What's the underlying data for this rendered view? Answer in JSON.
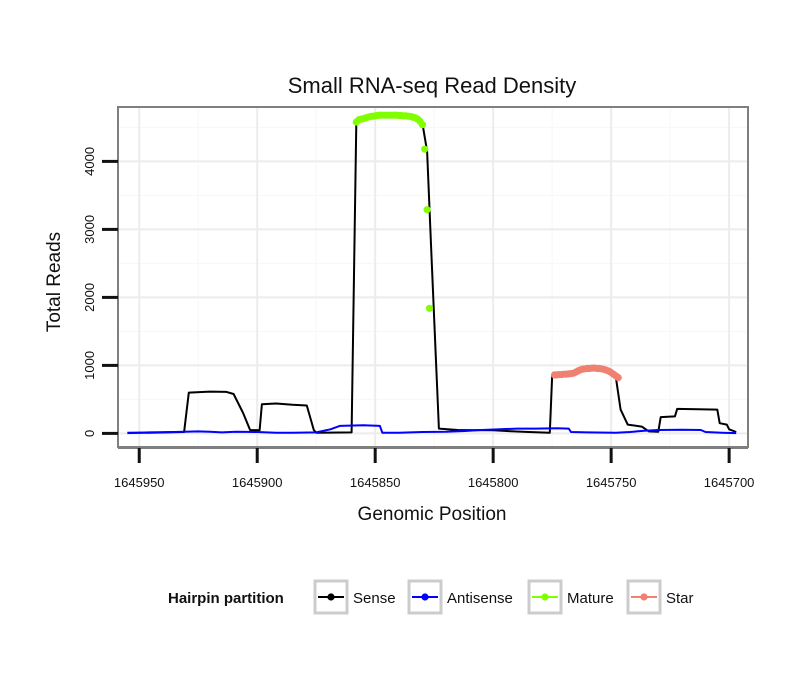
{
  "chart_data": {
    "type": "line",
    "title": "Small RNA-seq Read Density",
    "xlabel": "Genomic Position",
    "ylabel": "Total Reads",
    "xlim": [
      1645959,
      1645692
    ],
    "ylim": [
      -200,
      4800
    ],
    "x_reversed": true,
    "grid": true,
    "x_ticks": [
      1645950,
      1645900,
      1645850,
      1645800,
      1645750,
      1645700
    ],
    "x_tick_labels": [
      "1645950",
      "1645900",
      "1645850",
      "1645800",
      "1645750",
      "1645700"
    ],
    "y_ticks": [
      0,
      1000,
      2000,
      3000,
      4000
    ],
    "y_tick_labels": [
      "0",
      "1000",
      "2000",
      "3000",
      "4000"
    ],
    "legend": {
      "title": "Hairpin partition",
      "placement": "bottom",
      "entries": [
        {
          "name": "Sense",
          "color": "#000000"
        },
        {
          "name": "Antisense",
          "color": "#0000ff"
        },
        {
          "name": "Mature",
          "color": "#7fff00"
        },
        {
          "name": "Star",
          "color": "#f08070"
        }
      ]
    },
    "series": [
      {
        "name": "Sense",
        "color": "#000000",
        "style": "line",
        "points": [
          [
            1645955,
            10
          ],
          [
            1645946,
            10
          ],
          [
            1645939,
            15
          ],
          [
            1645931,
            20
          ],
          [
            1645929,
            600
          ],
          [
            1645920,
            615
          ],
          [
            1645913,
            610
          ],
          [
            1645910,
            580
          ],
          [
            1645906,
            300
          ],
          [
            1645903,
            50
          ],
          [
            1645899,
            45
          ],
          [
            1645898,
            430
          ],
          [
            1645892,
            440
          ],
          [
            1645885,
            420
          ],
          [
            1645879,
            410
          ],
          [
            1645876,
            50
          ],
          [
            1645875,
            10
          ],
          [
            1645860,
            15
          ],
          [
            1645858,
            4560
          ],
          [
            1645855,
            4640
          ],
          [
            1645840,
            4680
          ],
          [
            1645832,
            4660
          ],
          [
            1645830,
            4560
          ],
          [
            1645828,
            4150
          ],
          [
            1645826,
            2500
          ],
          [
            1645823,
            70
          ],
          [
            1645815,
            50
          ],
          [
            1645800,
            45
          ],
          [
            1645791,
            30
          ],
          [
            1645785,
            20
          ],
          [
            1645776,
            10
          ],
          [
            1645775,
            860
          ],
          [
            1645770,
            870
          ],
          [
            1645765,
            880
          ],
          [
            1645762,
            940
          ],
          [
            1645758,
            960
          ],
          [
            1645752,
            950
          ],
          [
            1645750,
            900
          ],
          [
            1645748,
            820
          ],
          [
            1645746,
            350
          ],
          [
            1645743,
            130
          ],
          [
            1645737,
            100
          ],
          [
            1645734,
            30
          ],
          [
            1645730,
            25
          ],
          [
            1645729,
            240
          ],
          [
            1645723,
            250
          ],
          [
            1645722,
            360
          ],
          [
            1645713,
            355
          ],
          [
            1645705,
            350
          ],
          [
            1645704,
            150
          ],
          [
            1645701,
            130
          ],
          [
            1645700,
            60
          ],
          [
            1645697,
            20
          ]
        ]
      },
      {
        "name": "Antisense",
        "color": "#0000ff",
        "style": "line",
        "points": [
          [
            1645955,
            5
          ],
          [
            1645946,
            15
          ],
          [
            1645935,
            20
          ],
          [
            1645925,
            30
          ],
          [
            1645920,
            25
          ],
          [
            1645915,
            15
          ],
          [
            1645909,
            25
          ],
          [
            1645900,
            20
          ],
          [
            1645892,
            10
          ],
          [
            1645885,
            10
          ],
          [
            1645875,
            15
          ],
          [
            1645869,
            60
          ],
          [
            1645865,
            110
          ],
          [
            1645855,
            120
          ],
          [
            1645848,
            110
          ],
          [
            1645847,
            10
          ],
          [
            1645840,
            10
          ],
          [
            1645830,
            20
          ],
          [
            1645820,
            25
          ],
          [
            1645812,
            35
          ],
          [
            1645805,
            50
          ],
          [
            1645797,
            60
          ],
          [
            1645790,
            70
          ],
          [
            1645782,
            70
          ],
          [
            1645773,
            75
          ],
          [
            1645768,
            70
          ],
          [
            1645767,
            20
          ],
          [
            1645760,
            15
          ],
          [
            1645748,
            10
          ],
          [
            1645742,
            20
          ],
          [
            1645736,
            40
          ],
          [
            1645730,
            50
          ],
          [
            1645720,
            55
          ],
          [
            1645712,
            50
          ],
          [
            1645710,
            20
          ],
          [
            1645703,
            10
          ],
          [
            1645697,
            5
          ]
        ]
      },
      {
        "name": "Mature",
        "color": "#7fff00",
        "style": "points",
        "points": [
          [
            1645858,
            4580
          ],
          [
            1645857,
            4610
          ],
          [
            1645856,
            4620
          ],
          [
            1645855,
            4630
          ],
          [
            1645854,
            4640
          ],
          [
            1645853,
            4650
          ],
          [
            1645852,
            4660
          ],
          [
            1645851,
            4665
          ],
          [
            1645850,
            4670
          ],
          [
            1645849,
            4675
          ],
          [
            1645848,
            4680
          ],
          [
            1645847,
            4680
          ],
          [
            1645846,
            4680
          ],
          [
            1645845,
            4680
          ],
          [
            1645844,
            4680
          ],
          [
            1645843,
            4680
          ],
          [
            1645842,
            4680
          ],
          [
            1645841,
            4680
          ],
          [
            1645840,
            4675
          ],
          [
            1645839,
            4675
          ],
          [
            1645838,
            4670
          ],
          [
            1645837,
            4670
          ],
          [
            1645836,
            4665
          ],
          [
            1645835,
            4660
          ],
          [
            1645834,
            4650
          ],
          [
            1645833,
            4640
          ],
          [
            1645832,
            4620
          ],
          [
            1645831,
            4590
          ],
          [
            1645830,
            4540
          ],
          [
            1645829,
            4180
          ],
          [
            1645828,
            3290
          ],
          [
            1645827,
            1840
          ]
        ]
      },
      {
        "name": "Star",
        "color": "#f08070",
        "style": "points",
        "points": [
          [
            1645774,
            860
          ],
          [
            1645773,
            860
          ],
          [
            1645772,
            865
          ],
          [
            1645771,
            865
          ],
          [
            1645770,
            870
          ],
          [
            1645769,
            870
          ],
          [
            1645768,
            875
          ],
          [
            1645767,
            880
          ],
          [
            1645766,
            885
          ],
          [
            1645765,
            900
          ],
          [
            1645764,
            920
          ],
          [
            1645763,
            935
          ],
          [
            1645762,
            945
          ],
          [
            1645761,
            950
          ],
          [
            1645760,
            955
          ],
          [
            1645759,
            955
          ],
          [
            1645758,
            960
          ],
          [
            1645757,
            960
          ],
          [
            1645756,
            955
          ],
          [
            1645755,
            955
          ],
          [
            1645754,
            950
          ],
          [
            1645753,
            940
          ],
          [
            1645752,
            930
          ],
          [
            1645751,
            915
          ],
          [
            1645750,
            895
          ],
          [
            1645749,
            870
          ],
          [
            1645748,
            845
          ],
          [
            1645747,
            820
          ]
        ]
      }
    ]
  }
}
